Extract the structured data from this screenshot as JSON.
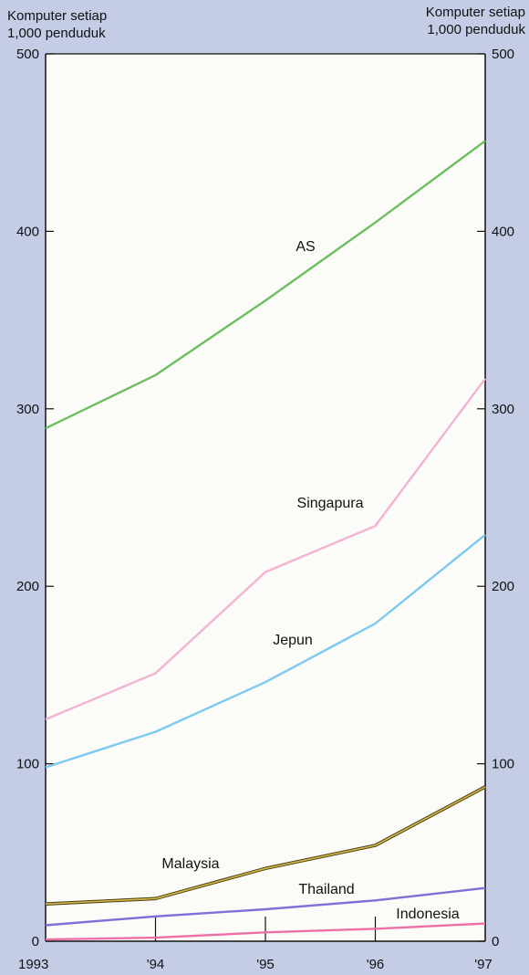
{
  "chart_data": {
    "type": "line",
    "ylabel_left": [
      "Komputer setiap",
      "1,000 penduduk"
    ],
    "ylabel_right": [
      "Komputer setiap",
      "1,000 penduduk"
    ],
    "x": [
      "1993",
      "'94",
      "'95",
      "'96",
      "'97"
    ],
    "ylim": [
      0,
      500
    ],
    "yticks": [
      0,
      100,
      200,
      300,
      400,
      500
    ],
    "grid": false,
    "series": [
      {
        "name": "AS",
        "color": "#6cbf5e",
        "values": [
          289,
          319,
          361,
          405,
          451
        ]
      },
      {
        "name": "Singapura",
        "color": "#f2b3d4",
        "values": [
          125,
          151,
          208,
          234,
          317
        ]
      },
      {
        "name": "Jepun",
        "color": "#7ccaf0",
        "values": [
          98,
          118,
          146,
          179,
          229
        ]
      },
      {
        "name": "Malaysia",
        "color": "#9c8a2c",
        "values": [
          21,
          24,
          41,
          54,
          87
        ]
      },
      {
        "name": "Thailand",
        "color": "#7f6fd6",
        "values": [
          9,
          14,
          18,
          23,
          30
        ]
      },
      {
        "name": "Indonesia",
        "color": "#ee6fa6",
        "values": [
          1,
          2,
          5,
          7,
          10
        ]
      }
    ]
  }
}
